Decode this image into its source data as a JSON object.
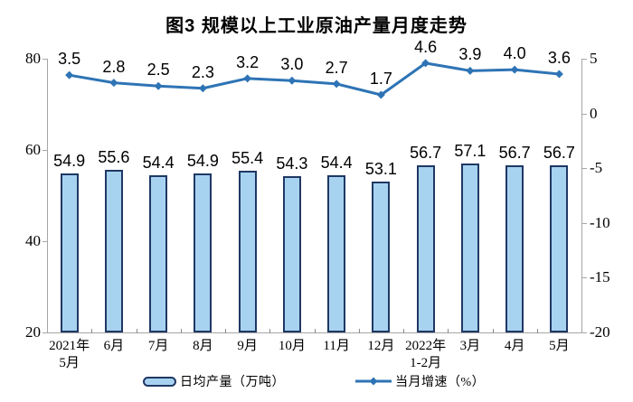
{
  "title": "图3 规模以上工业原油产量月度走势",
  "chart_data": {
    "type": "combo",
    "title": "图3 规模以上工业原油产量月度走势",
    "categories": [
      "2021年\n5月",
      "6月",
      "7月",
      "8月",
      "9月",
      "10月",
      "11月",
      "12月",
      "2022年\n1-2月",
      "3月",
      "4月",
      "5月"
    ],
    "series": [
      {
        "name": "日均产量（万吨）",
        "type": "bar",
        "axis": "left",
        "values": [
          54.9,
          55.6,
          54.4,
          54.9,
          55.4,
          54.3,
          54.4,
          53.1,
          56.7,
          57.1,
          56.7,
          56.7
        ],
        "fill_color": "#a8d3f0",
        "border_color": "#1f3864"
      },
      {
        "name": "当月增速（%）",
        "type": "line",
        "axis": "right",
        "values": [
          3.5,
          2.8,
          2.5,
          2.3,
          3.2,
          3.0,
          2.7,
          1.7,
          4.6,
          3.9,
          4.0,
          3.6
        ],
        "line_color": "#2e74b5",
        "marker": "diamond"
      }
    ],
    "left_axis": {
      "min": 20,
      "max": 80,
      "ticks": [
        80,
        60,
        40,
        20
      ]
    },
    "right_axis": {
      "min": -20,
      "max": 5,
      "ticks": [
        5,
        0,
        -5,
        -10,
        -15,
        -20
      ]
    },
    "legend_position": "bottom",
    "grid": false,
    "axis_color": "#a6a6a6",
    "label_color": "#000000"
  }
}
